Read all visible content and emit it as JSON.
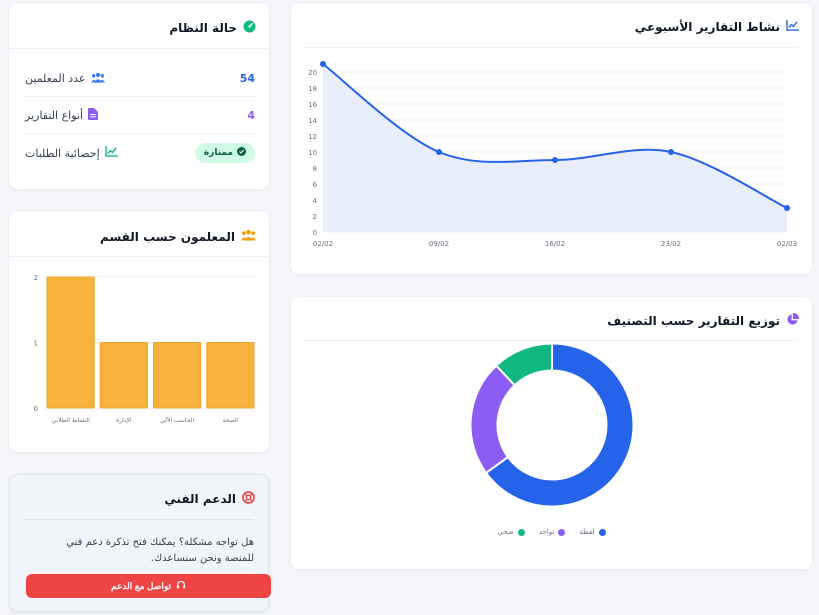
{
  "system_status": {
    "title": "حالة النظام",
    "rows": [
      {
        "label": "عدد المعلمين",
        "value": "54",
        "color": "#2563eb"
      },
      {
        "label": "أنواع التقارير",
        "value": "4",
        "color": "#8b5cf6"
      },
      {
        "label": "إحصائية الطلبات",
        "badge": "ممتازة"
      }
    ]
  },
  "teachers_by_dept": {
    "title": "المعلمون حسب القسم",
    "chart_data": {
      "type": "bar",
      "categories": [
        "النشاط الطلابي",
        "الإدارة",
        "الحاسب الآلي",
        "الصحة"
      ],
      "values": [
        2,
        1,
        1,
        1
      ],
      "ylim": [
        0,
        2
      ],
      "yticks": [
        "0",
        "1",
        "2"
      ],
      "color": "#f7b23b"
    }
  },
  "support": {
    "title": "الدعم الفني",
    "text": "هل تواجه مشكلة؟ يمكنك فتح تذكرة دعم فني للمنصة ونحن سنساعدك.",
    "button": "تواصل مع الدعم"
  },
  "weekly_activity": {
    "title": "نشاط التقارير الأسبوعي",
    "chart_data": {
      "type": "line",
      "x": [
        "02/02",
        "09/02",
        "16/02",
        "23/02",
        "02/03"
      ],
      "y": [
        21,
        10,
        9,
        10,
        3
      ],
      "ylim": [
        0,
        21
      ],
      "yticks": [
        0,
        2,
        4,
        6,
        8,
        10,
        12,
        14,
        16,
        18,
        20
      ],
      "color": "#2563eb",
      "fill": "#e8eefb"
    }
  },
  "classification": {
    "title": "توزيع التقارير حسب التصنيف",
    "chart_data": {
      "type": "pie",
      "labels": [
        "لقطة",
        "تواجد",
        "صحي"
      ],
      "values": [
        65,
        23,
        12
      ],
      "colors": [
        "#2563eb",
        "#8b5cf6",
        "#10b981"
      ]
    }
  }
}
